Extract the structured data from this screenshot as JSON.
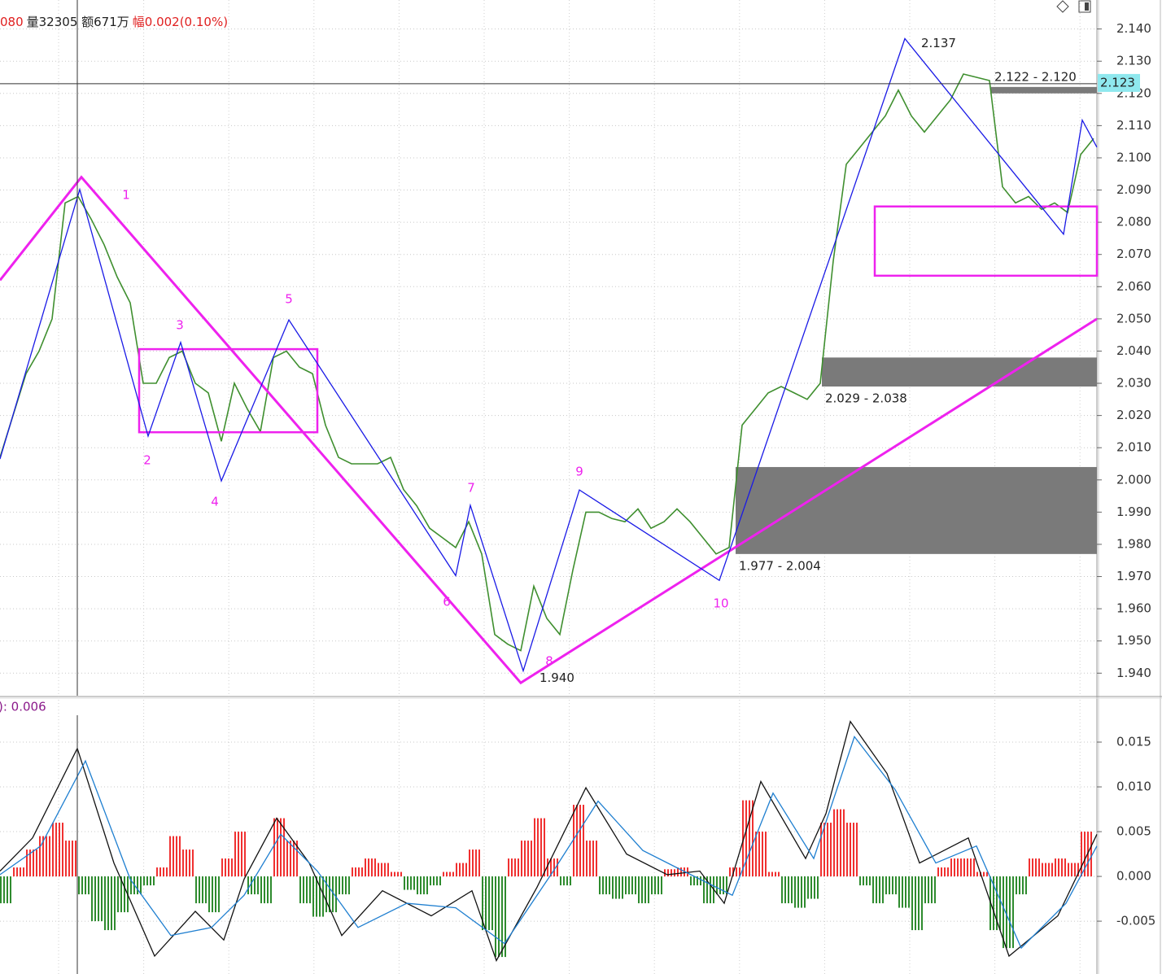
{
  "header": {
    "segments": [
      {
        "text": "080",
        "color": "#e02020"
      },
      {
        "text": "量32305 额671万",
        "color": "#222222"
      },
      {
        "text": "幅0.002(0.10%)",
        "color": "#e02020"
      }
    ]
  },
  "chart_data": [
    {
      "type": "stock",
      "xlim": [
        0,
        1348
      ],
      "ylim": [
        1.933,
        2.149
      ],
      "yticks": [
        {
          "value": 1.94,
          "label": "1.940"
        },
        {
          "value": 1.95,
          "label": "1.950"
        },
        {
          "value": 1.96,
          "label": "1.960"
        },
        {
          "value": 1.97,
          "label": "1.970"
        },
        {
          "value": 1.98,
          "label": "1.980"
        },
        {
          "value": 1.99,
          "label": "1.990"
        },
        {
          "value": 2.0,
          "label": "2.000"
        },
        {
          "value": 2.01,
          "label": "2.010"
        },
        {
          "value": 2.02,
          "label": "2.020"
        },
        {
          "value": 2.03,
          "label": "2.030"
        },
        {
          "value": 2.04,
          "label": "2.040"
        },
        {
          "value": 2.05,
          "label": "2.050"
        },
        {
          "value": 2.06,
          "label": "2.060"
        },
        {
          "value": 2.07,
          "label": "2.070"
        },
        {
          "value": 2.08,
          "label": "2.080"
        },
        {
          "value": 2.09,
          "label": "2.090"
        },
        {
          "value": 2.1,
          "label": "2.100"
        },
        {
          "value": 2.11,
          "label": "2.110"
        },
        {
          "value": 2.12,
          "label": "2.120"
        },
        {
          "value": 2.13,
          "label": "2.130"
        },
        {
          "value": 2.14,
          "label": "2.140"
        }
      ],
      "grid": true,
      "price": {
        "color": "#3f8f2f",
        "x": [
          0,
          16,
          32,
          48,
          64,
          80,
          96,
          112,
          128,
          144,
          160,
          176,
          192,
          208,
          224,
          240,
          256,
          272,
          288,
          304,
          320,
          336,
          352,
          368,
          384,
          400,
          416,
          432,
          448,
          464,
          480,
          496,
          512,
          528,
          544,
          560,
          576,
          592,
          608,
          624,
          640,
          656,
          672,
          688,
          704,
          720,
          736,
          752,
          768,
          784,
          800,
          816,
          832,
          848,
          864,
          880,
          896,
          912,
          928,
          944,
          960,
          976,
          992,
          1008,
          1024,
          1040,
          1056,
          1072,
          1088,
          1104,
          1120,
          1136,
          1152,
          1168,
          1184,
          1200,
          1216,
          1232,
          1248,
          1264,
          1280,
          1296,
          1312,
          1328,
          1344
        ],
        "values": [
          2.007,
          2.02,
          2.033,
          2.04,
          2.05,
          2.086,
          2.088,
          2.081,
          2.073,
          2.063,
          2.055,
          2.03,
          2.03,
          2.038,
          2.04,
          2.03,
          2.027,
          2.012,
          2.03,
          2.022,
          2.015,
          2.038,
          2.04,
          2.035,
          2.033,
          2.017,
          2.007,
          2.005,
          2.005,
          2.005,
          2.007,
          1.997,
          1.992,
          1.985,
          1.982,
          1.979,
          1.987,
          1.977,
          1.952,
          1.949,
          1.947,
          1.967,
          1.957,
          1.952,
          1.972,
          1.99,
          1.99,
          1.988,
          1.987,
          1.991,
          1.985,
          1.987,
          1.991,
          1.987,
          1.982,
          1.977,
          1.979,
          2.017,
          2.022,
          2.027,
          2.029,
          2.027,
          2.025,
          2.03,
          2.068,
          2.098,
          2.103,
          2.108,
          2.113,
          2.121,
          2.113,
          2.108,
          2.113,
          2.118,
          2.126,
          2.125,
          2.124,
          2.091,
          2.086,
          2.088,
          2.084,
          2.086,
          2.083,
          2.101,
          2.106
        ]
      },
      "zigzag": {
        "color": "#1a1ae6",
        "x": [
          0,
          98,
          182,
          222,
          272,
          355,
          560,
          578,
          643,
          712,
          884,
          1112,
          1307,
          1330,
          1348
        ],
        "values": [
          2.0065,
          2.0902,
          2.0136,
          2.0427,
          1.9997,
          2.0497,
          1.9703,
          1.9921,
          1.9407,
          1.9969,
          1.9688,
          2.137,
          2.0763,
          2.1117,
          2.1033
        ]
      },
      "trend": {
        "color": "#ee22ee",
        "x": [
          0,
          100,
          640,
          1348
        ],
        "values": [
          2.062,
          2.094,
          1.937,
          2.05
        ]
      },
      "boxes": [
        {
          "xlim": [
            171,
            390
          ],
          "ylim": [
            2.0148,
            2.0406
          ],
          "color": "#ee22ee"
        },
        {
          "xlim": [
            1075,
            1348
          ],
          "ylim": [
            2.0634,
            2.0849
          ],
          "color": "#ee22ee"
        }
      ],
      "zones": [
        {
          "label": "2.122 - 2.120",
          "range": [
            2.122,
            2.12
          ],
          "x0": 1218,
          "color": "#7a7a7a"
        },
        {
          "label": "2.029 - 2.038",
          "range": [
            2.029,
            2.038
          ],
          "x0": 1010,
          "color": "#7a7a7a"
        },
        {
          "label": "1.977 - 2.004",
          "range": [
            1.977,
            2.004
          ],
          "x0": 904,
          "color": "#7a7a7a"
        }
      ],
      "wave_labels": [
        "1",
        "2",
        "3",
        "4",
        "5",
        "6",
        "7",
        "8",
        "9",
        "10"
      ],
      "extremes": {
        "x": [
          1112,
          643
        ],
        "values": [
          2.137,
          1.94
        ],
        "value_labels": [
          "2.137",
          "1.940"
        ]
      },
      "crosshair": {
        "x": 95,
        "value": 2.123
      }
    },
    {
      "type": "macd",
      "title": "): 0.006",
      "xlim": [
        0,
        1348
      ],
      "ylim": [
        -0.0109,
        0.02
      ],
      "yticks": [
        {
          "value": -0.005,
          "label": "-0.005"
        },
        {
          "value": 0,
          "label": "0.000"
        },
        {
          "value": 0.005,
          "label": "0.005"
        },
        {
          "value": 0.01,
          "label": "0.010"
        },
        {
          "value": 0.015,
          "label": "0.015"
        }
      ],
      "histogram": {
        "up_color": "#f03030",
        "down_color": "#2e8b2e",
        "x": [
          8,
          24,
          40,
          56,
          72,
          88,
          104,
          120,
          136,
          152,
          168,
          184,
          200,
          216,
          232,
          248,
          264,
          280,
          296,
          312,
          328,
          344,
          360,
          376,
          392,
          408,
          424,
          440,
          456,
          472,
          488,
          504,
          520,
          536,
          552,
          568,
          584,
          600,
          616,
          632,
          648,
          664,
          680,
          696,
          712,
          728,
          744,
          760,
          776,
          792,
          808,
          824,
          840,
          856,
          872,
          888,
          904,
          920,
          936,
          952,
          968,
          984,
          1000,
          1016,
          1032,
          1048,
          1064,
          1080,
          1096,
          1112,
          1128,
          1144,
          1160,
          1176,
          1192,
          1208,
          1224,
          1240,
          1256,
          1272,
          1288,
          1304,
          1320,
          1336
        ],
        "values": [
          -0.003,
          0.001,
          0.003,
          0.0045,
          0.006,
          0.004,
          -0.002,
          -0.005,
          -0.006,
          -0.004,
          -0.002,
          -0.001,
          0.001,
          0.0045,
          0.003,
          -0.003,
          -0.004,
          0.002,
          0.005,
          -0.002,
          -0.003,
          0.0065,
          0.004,
          -0.003,
          -0.0045,
          -0.004,
          -0.002,
          0.001,
          0.002,
          0.0015,
          0.0005,
          -0.0015,
          -0.002,
          -0.001,
          0.0005,
          0.0015,
          0.003,
          -0.006,
          -0.009,
          0.002,
          0.004,
          0.0065,
          0.002,
          -0.001,
          0.008,
          0.004,
          -0.002,
          -0.0025,
          -0.002,
          -0.003,
          -0.002,
          0.0008,
          0.001,
          -0.001,
          -0.003,
          -0.002,
          0.001,
          0.0085,
          0.005,
          0.0005,
          -0.003,
          -0.0035,
          -0.0025,
          0.006,
          0.0075,
          0.006,
          -0.001,
          -0.003,
          -0.002,
          -0.0035,
          -0.006,
          -0.003,
          0.001,
          0.002,
          0.002,
          0.0005,
          -0.006,
          -0.008,
          -0.002,
          0.002,
          0.0015,
          0.002,
          0.0015,
          0.005
        ]
      },
      "dif": {
        "color": "#111111",
        "x": [
          0,
          40,
          95,
          140,
          190,
          240,
          275,
          300,
          340,
          380,
          420,
          470,
          530,
          580,
          610,
          660,
          720,
          770,
          820,
          860,
          890,
          935,
          990,
          1015,
          1045,
          1090,
          1130,
          1190,
          1240,
          1300,
          1348
        ],
        "values": [
          0.0006,
          0.0043,
          0.0143,
          0.0015,
          -0.0089,
          -0.0039,
          -0.0071,
          -0.0003,
          0.0065,
          0.0015,
          -0.0066,
          -0.0016,
          -0.0044,
          -0.0016,
          -0.0094,
          -0.0012,
          0.0099,
          0.0025,
          0.0002,
          0.0006,
          -0.003,
          0.0106,
          0.002,
          0.007,
          0.0173,
          0.0115,
          0.0015,
          0.0043,
          -0.0089,
          -0.0044,
          0.0047
        ]
      },
      "dea": {
        "color": "#1f7fd0",
        "x": [
          0,
          50,
          105,
          160,
          210,
          260,
          300,
          345,
          390,
          440,
          500,
          560,
          620,
          680,
          735,
          790,
          840,
          900,
          950,
          1000,
          1050,
          1100,
          1150,
          1200,
          1255,
          1310,
          1348
        ],
        "values": [
          0.0002,
          0.0034,
          0.0129,
          -0.0003,
          -0.0066,
          -0.0057,
          -0.0021,
          0.0047,
          0.0006,
          -0.0057,
          -0.003,
          -0.0035,
          -0.0075,
          0.0006,
          0.0084,
          0.0029,
          0.0006,
          -0.0021,
          0.0093,
          0.002,
          0.0156,
          0.0097,
          0.0015,
          0.0034,
          -0.008,
          -0.003,
          0.0034
        ]
      },
      "crosshair": {
        "x": 95
      }
    }
  ]
}
